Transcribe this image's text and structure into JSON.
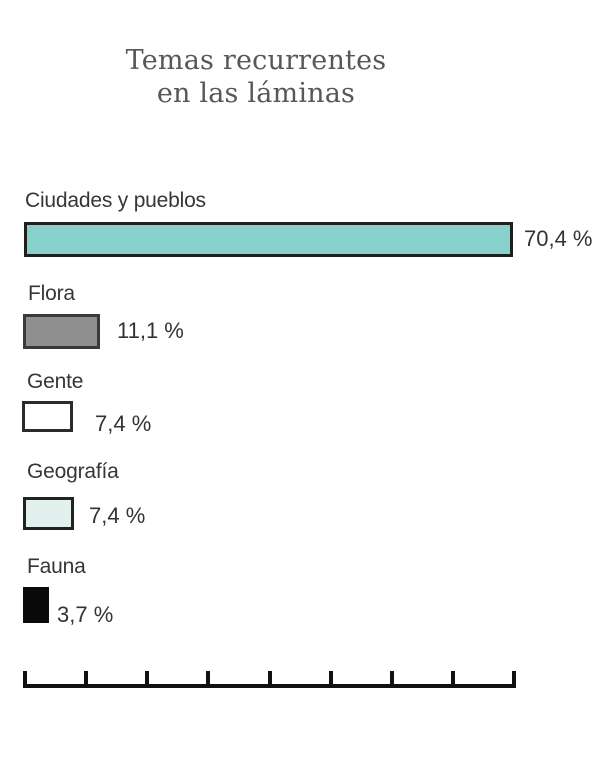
{
  "title": {
    "line1": "Temas recurrentes",
    "line2": "en las láminas"
  },
  "chart_data": {
    "type": "bar",
    "orientation": "horizontal",
    "title": "Temas recurrentes en las láminas",
    "categories": [
      "Ciudades y pueblos",
      "Flora",
      "Gente",
      "Geografía",
      "Fauna"
    ],
    "values": [
      70.4,
      11.1,
      7.4,
      7.4,
      3.7
    ],
    "value_labels": [
      "70,4 %",
      "11,1 %",
      "7,4 %",
      "7,4 %",
      "3,7 %"
    ],
    "bar_colors": [
      "#87d1ca",
      "#8f8f8f",
      "#ffffff",
      "#e2f1ed",
      "#0a0a0a"
    ],
    "bar_border_color": "#1f1f1f",
    "unit": "%",
    "xlabel": "",
    "ylabel": "",
    "axis": {
      "tick_count": 9,
      "tick_labels_visible": false,
      "gridlines": false,
      "position": "bottom"
    },
    "legend": "none",
    "title_color": "#575757",
    "label_color": "#363636"
  }
}
